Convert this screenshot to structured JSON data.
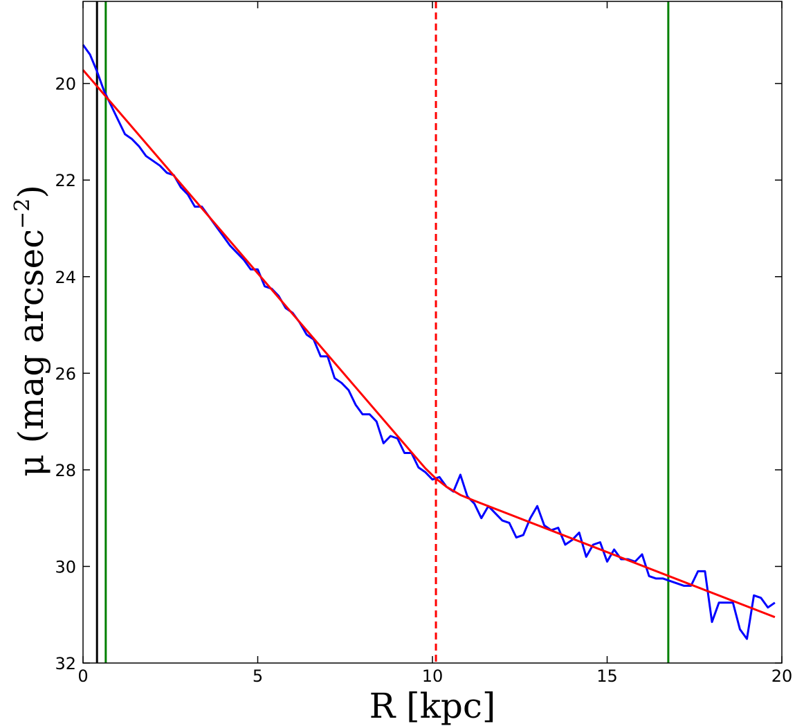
{
  "chart_data": {
    "type": "line",
    "title": "",
    "xlabel": "R [kpc]",
    "ylabel": "μ (mag arcsec",
    "ylabel_superscript": "−2",
    "ylabel_close": ")",
    "xlim": [
      0,
      20
    ],
    "ylim": [
      32,
      18.3
    ],
    "y_inverted": true,
    "grid": false,
    "x_ticks": [
      0,
      5,
      10,
      15,
      20
    ],
    "x_tick_labels": [
      "0",
      "5",
      "10",
      "15",
      "20"
    ],
    "y_ticks": [
      20,
      22,
      24,
      26,
      28,
      30,
      32
    ],
    "y_tick_labels": [
      "20",
      "22",
      "24",
      "26",
      "28",
      "30",
      "32"
    ],
    "series": [
      {
        "color": "#0000ff",
        "x": [
          0.0,
          0.2,
          0.4,
          0.6,
          0.8,
          1.0,
          1.2,
          1.4,
          1.6,
          1.8,
          2.0,
          2.2,
          2.4,
          2.6,
          2.8,
          3.0,
          3.2,
          3.4,
          3.6,
          3.8,
          4.0,
          4.2,
          4.4,
          4.6,
          4.8,
          5.0,
          5.2,
          5.4,
          5.6,
          5.8,
          6.0,
          6.2,
          6.4,
          6.6,
          6.8,
          7.0,
          7.2,
          7.4,
          7.6,
          7.8,
          8.0,
          8.2,
          8.4,
          8.6,
          8.8,
          9.0,
          9.2,
          9.4,
          9.6,
          9.8,
          10.0,
          10.2,
          10.4,
          10.6,
          10.8,
          11.0,
          11.2,
          11.4,
          11.6,
          11.8,
          12.0,
          12.2,
          12.4,
          12.6,
          12.8,
          13.0,
          13.2,
          13.4,
          13.6,
          13.8,
          14.0,
          14.2,
          14.4,
          14.6,
          14.8,
          15.0,
          15.2,
          15.4,
          15.6,
          15.8,
          16.0,
          16.2,
          16.4,
          16.6,
          16.8,
          17.0,
          17.2,
          17.4,
          17.6,
          17.8,
          18.0,
          18.2,
          18.4,
          18.6,
          18.8,
          19.0,
          19.2,
          19.4,
          19.6,
          19.8
        ],
        "y": [
          19.2,
          19.4,
          19.75,
          20.15,
          20.45,
          20.75,
          21.05,
          21.15,
          21.3,
          21.5,
          21.6,
          21.7,
          21.85,
          21.9,
          22.15,
          22.3,
          22.55,
          22.55,
          22.75,
          22.95,
          23.15,
          23.35,
          23.5,
          23.65,
          23.85,
          23.85,
          24.2,
          24.25,
          24.4,
          24.65,
          24.75,
          24.95,
          25.2,
          25.3,
          25.65,
          25.65,
          26.1,
          26.2,
          26.35,
          26.65,
          26.85,
          26.85,
          27.0,
          27.45,
          27.3,
          27.35,
          27.65,
          27.65,
          27.95,
          28.05,
          28.2,
          28.15,
          28.35,
          28.45,
          28.1,
          28.55,
          28.7,
          29.0,
          28.75,
          28.9,
          29.05,
          29.1,
          29.4,
          29.35,
          29.0,
          28.75,
          29.15,
          29.25,
          29.2,
          29.55,
          29.45,
          29.3,
          29.8,
          29.55,
          29.5,
          29.9,
          29.65,
          29.85,
          29.85,
          29.9,
          29.75,
          30.2,
          30.25,
          30.25,
          30.3,
          30.35,
          30.4,
          30.4,
          30.1,
          30.1,
          31.15,
          30.75,
          30.75,
          30.75,
          31.3,
          31.5,
          30.6,
          30.65,
          30.85,
          30.75
        ]
      },
      {
        "color": "#ff0000",
        "x": [
          0.0,
          9.0,
          9.5,
          9.8,
          10.1,
          10.4,
          10.8,
          11.2,
          19.8
        ],
        "y": [
          19.72,
          27.3,
          27.72,
          27.97,
          28.18,
          28.35,
          28.52,
          28.64,
          31.05
        ]
      }
    ],
    "vertical_lines": [
      {
        "x": 0.4,
        "color": "#000000",
        "style": "solid"
      },
      {
        "x": 0.65,
        "color": "#008000",
        "style": "solid"
      },
      {
        "x": 10.1,
        "color": "#ff0000",
        "style": "dashed"
      },
      {
        "x": 16.75,
        "color": "#008000",
        "style": "solid"
      }
    ]
  }
}
